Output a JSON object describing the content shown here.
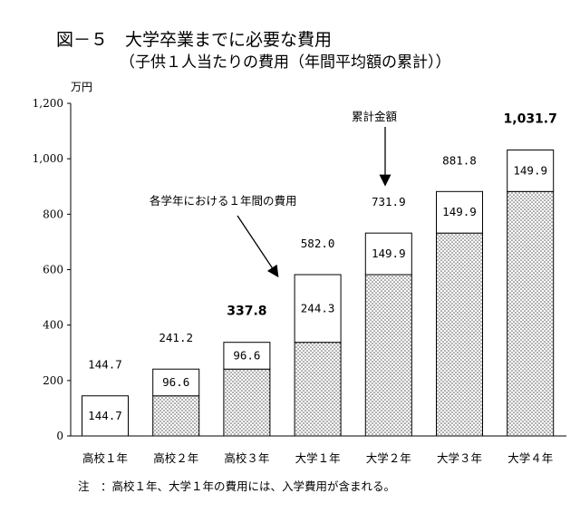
{
  "chart_data": {
    "type": "bar",
    "title": "図－５　大学卒業までに必要な費用",
    "subtitle": "（子供１人当たりの費用（年間平均額の累計））",
    "unit_label": "万円",
    "ylim": [
      0,
      1200
    ],
    "yticks": [
      {
        "value": 0,
        "label": "0"
      },
      {
        "value": 200,
        "label": "200"
      },
      {
        "value": 400,
        "label": "400"
      },
      {
        "value": 600,
        "label": "600"
      },
      {
        "value": 800,
        "label": "800"
      },
      {
        "value": 1000,
        "label": "1,000"
      },
      {
        "value": 1200,
        "label": "1,200"
      }
    ],
    "categories": [
      "高校１年",
      "高校２年",
      "高校３年",
      "大学１年",
      "大学２年",
      "大学３年",
      "大学４年"
    ],
    "base_values": [
      0,
      144.7,
      241.2,
      337.8,
      582.0,
      731.9,
      881.8
    ],
    "annual_values": [
      144.7,
      96.6,
      96.6,
      244.3,
      149.9,
      149.9,
      149.9
    ],
    "annual_labels": [
      "144.7",
      "96.6",
      "96.6",
      "244.3",
      "149.9",
      "149.9",
      "149.9"
    ],
    "totals": [
      144.7,
      241.2,
      337.8,
      582.0,
      731.9,
      881.8,
      1031.7
    ],
    "total_labels": [
      "144.7",
      "241.2",
      "337.8",
      "582.0",
      "731.9",
      "881.8",
      "1,031.7"
    ],
    "total_bold": [
      false,
      false,
      true,
      false,
      false,
      false,
      true
    ],
    "annotations": {
      "cumulative": "累計金額",
      "annual": "各学年における１年間の費用"
    },
    "note": "注　：高校１年、大学１年の費用には、入学費用が含まれる。",
    "colors": {
      "bar_border": "#000000",
      "dots": "#555555",
      "bar_fill": "#ffffff"
    }
  }
}
